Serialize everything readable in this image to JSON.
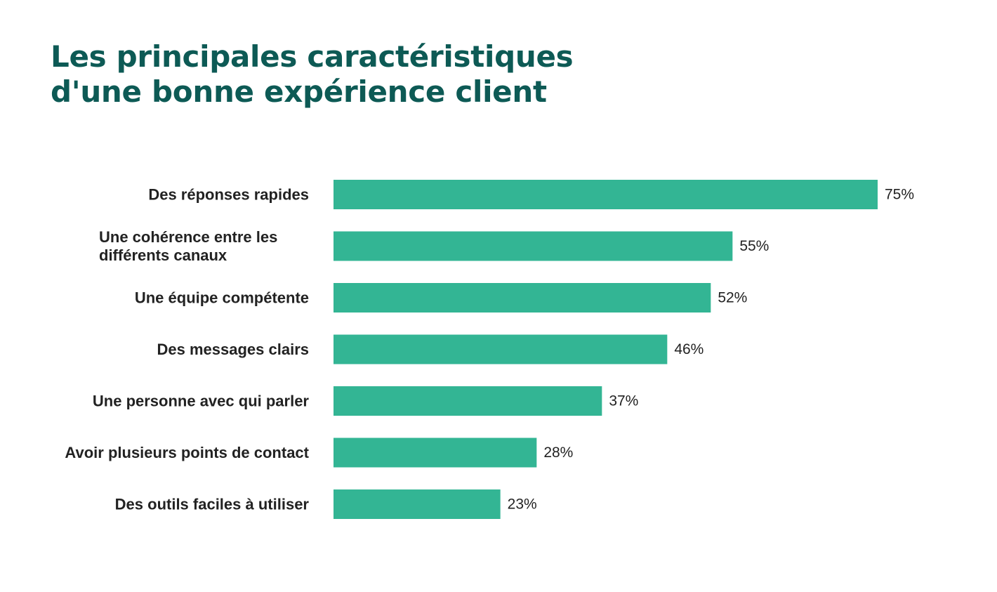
{
  "title": {
    "line1": "Les principales caractéristiques",
    "line2": "d'une bonne expérience client"
  },
  "colors": {
    "title": "#0d5a55",
    "bar": "#33b594",
    "text": "#222222"
  },
  "chart_data": {
    "type": "bar",
    "orientation": "horizontal",
    "categories": [
      [
        "Des réponses rapides"
      ],
      [
        "Une cohérence entre les",
        "différents canaux"
      ],
      [
        "Une équipe compétente"
      ],
      [
        "Des messages clairs"
      ],
      [
        "Une personne avec qui parler"
      ],
      [
        "Avoir plusieurs points de contact"
      ],
      [
        "Des outils faciles à utiliser"
      ]
    ],
    "values": [
      75,
      55,
      52,
      46,
      37,
      28,
      23
    ],
    "value_labels": [
      "75%",
      "55%",
      "52%",
      "46%",
      "37%",
      "28%",
      "23%"
    ],
    "unit": "%",
    "grid": false,
    "legend": "none"
  }
}
